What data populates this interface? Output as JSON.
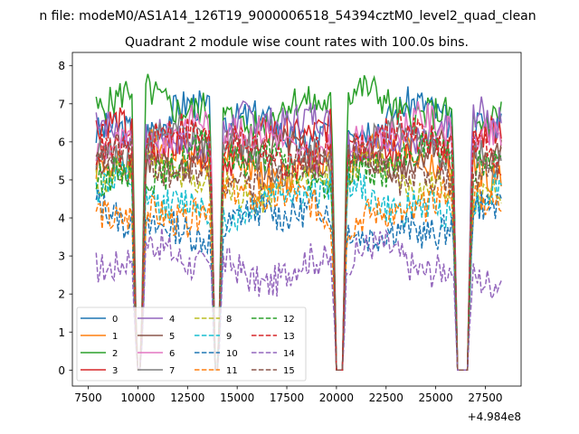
{
  "figure": {
    "suptitle": "n file: modeM0/AS1A14_126T19_9000006518_54394cztM0_level2_quad_clean",
    "offset_label": "+4.984e8"
  },
  "chart_data": {
    "type": "line",
    "title": "Quadrant 2 module wise count rates with 100.0s bins.",
    "xlabel": "",
    "ylabel": "",
    "xlim": [
      6700,
      29300
    ],
    "ylim": [
      -0.42,
      8.35
    ],
    "xticks": [
      7500,
      10000,
      12500,
      15000,
      17500,
      20000,
      22500,
      25000,
      27500
    ],
    "xtick_labels": [
      "7500",
      "10000",
      "12500",
      "15000",
      "17500",
      "20000",
      "22500",
      "25000",
      "27500"
    ],
    "yticks": [
      0,
      1,
      2,
      3,
      4,
      5,
      6,
      7,
      8
    ],
    "ytick_labels": [
      "0",
      "1",
      "2",
      "3",
      "4",
      "5",
      "6",
      "7",
      "8"
    ],
    "x_start": 7900,
    "x_end": 28300,
    "bin_seconds": 100,
    "gaps": [
      [
        9950,
        10150
      ],
      [
        13900,
        14050
      ],
      [
        20000,
        20300
      ],
      [
        26100,
        26600
      ]
    ],
    "legend": {
      "location": "lower-left",
      "ncol": 4,
      "entries": [
        "0",
        "1",
        "2",
        "3",
        "4",
        "5",
        "6",
        "7",
        "8",
        "9",
        "10",
        "11",
        "12",
        "13",
        "14",
        "15"
      ]
    },
    "series": [
      {
        "name": "0",
        "mean": 6.5,
        "style": "solid",
        "color": "#1f77b4"
      },
      {
        "name": "1",
        "mean": 5.5,
        "style": "solid",
        "color": "#ff7f0e"
      },
      {
        "name": "2",
        "mean": 6.9,
        "style": "solid",
        "color": "#2ca02c"
      },
      {
        "name": "3",
        "mean": 6.0,
        "style": "solid",
        "color": "#d62728"
      },
      {
        "name": "4",
        "mean": 6.3,
        "style": "solid",
        "color": "#9467bd"
      },
      {
        "name": "5",
        "mean": 5.6,
        "style": "solid",
        "color": "#8c564b"
      },
      {
        "name": "6",
        "mean": 6.1,
        "style": "solid",
        "color": "#e377c2"
      },
      {
        "name": "7",
        "mean": 5.8,
        "style": "solid",
        "color": "#7f7f7f"
      },
      {
        "name": "8",
        "mean": 5.0,
        "style": "dashed",
        "color": "#bcbd22"
      },
      {
        "name": "9",
        "mean": 4.5,
        "style": "dashed",
        "color": "#17becf"
      },
      {
        "name": "10",
        "mean": 3.9,
        "style": "dashed",
        "color": "#1f77b4"
      },
      {
        "name": "11",
        "mean": 4.3,
        "style": "dashed",
        "color": "#ff7f0e"
      },
      {
        "name": "12",
        "mean": 5.4,
        "style": "dashed",
        "color": "#2ca02c"
      },
      {
        "name": "13",
        "mean": 5.9,
        "style": "dashed",
        "color": "#d62728"
      },
      {
        "name": "14",
        "mean": 2.8,
        "style": "dashed",
        "color": "#9467bd"
      },
      {
        "name": "15",
        "mean": 5.3,
        "style": "dashed",
        "color": "#8c564b"
      }
    ]
  }
}
